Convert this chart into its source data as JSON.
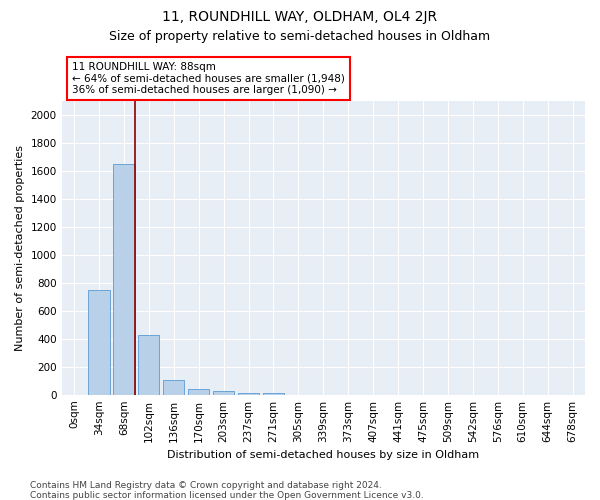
{
  "title": "11, ROUNDHILL WAY, OLDHAM, OL4 2JR",
  "subtitle": "Size of property relative to semi-detached houses in Oldham",
  "xlabel": "Distribution of semi-detached houses by size in Oldham",
  "ylabel": "Number of semi-detached properties",
  "categories": [
    "0sqm",
    "34sqm",
    "68sqm",
    "102sqm",
    "136sqm",
    "170sqm",
    "203sqm",
    "237sqm",
    "271sqm",
    "305sqm",
    "339sqm",
    "373sqm",
    "407sqm",
    "441sqm",
    "475sqm",
    "509sqm",
    "542sqm",
    "576sqm",
    "610sqm",
    "644sqm",
    "678sqm"
  ],
  "values": [
    0,
    750,
    1650,
    430,
    105,
    40,
    25,
    15,
    10,
    0,
    0,
    0,
    0,
    0,
    0,
    0,
    0,
    0,
    0,
    0,
    0
  ],
  "bar_color": "#b8d0e8",
  "bar_edge_color": "#5b9bd5",
  "property_line_x": 2.45,
  "annotation_text_line1": "11 ROUNDHILL WAY: 88sqm",
  "annotation_text_line2": "← 64% of semi-detached houses are smaller (1,948)",
  "annotation_text_line3": "36% of semi-detached houses are larger (1,090) →",
  "ylim": [
    0,
    2100
  ],
  "yticks": [
    0,
    200,
    400,
    600,
    800,
    1000,
    1200,
    1400,
    1600,
    1800,
    2000
  ],
  "footer_line1": "Contains HM Land Registry data © Crown copyright and database right 2024.",
  "footer_line2": "Contains public sector information licensed under the Open Government Licence v3.0.",
  "plot_bg_color": "#e8eef5",
  "grid_color": "#ffffff",
  "title_fontsize": 10,
  "subtitle_fontsize": 9,
  "axis_label_fontsize": 8,
  "tick_fontsize": 7.5,
  "annotation_fontsize": 7.5,
  "footer_fontsize": 6.5
}
